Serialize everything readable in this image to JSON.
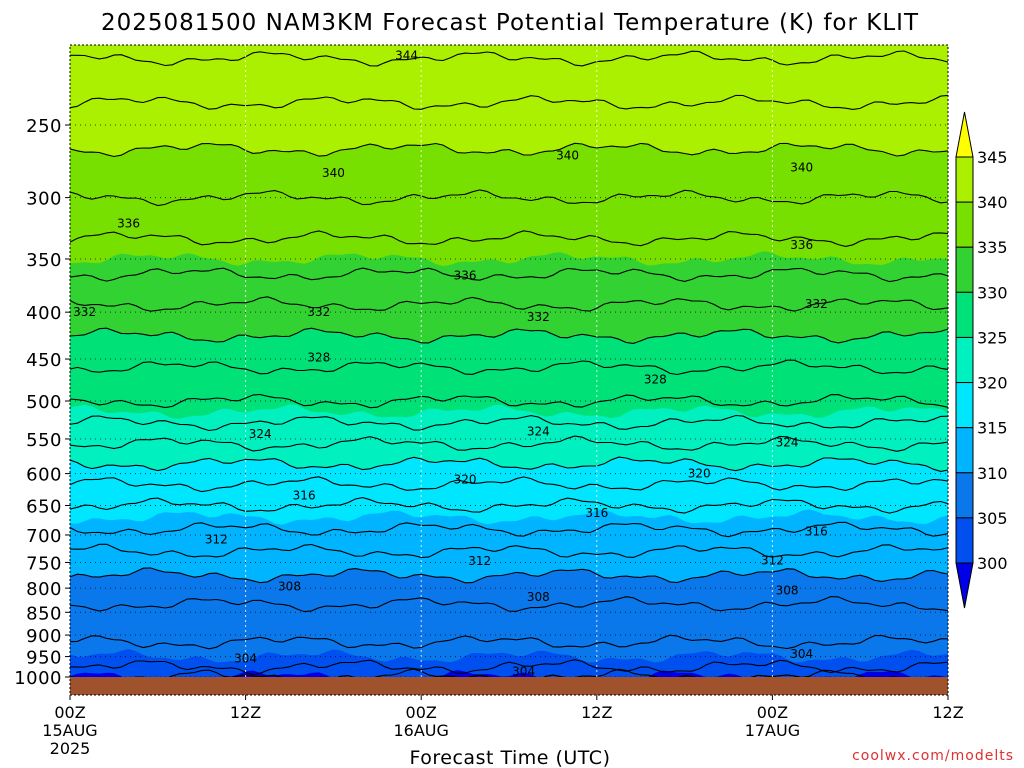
{
  "chart_data": {
    "type": "heatmap",
    "title": "2025081500 NAM3KM Forecast Potential Temperature (K) for KLIT",
    "xlabel": "Forecast Time (UTC)",
    "ylabel": "",
    "credit": "coolwx.com/modelts",
    "x_ticks": [
      {
        "hour": 0,
        "label": "00Z",
        "sub1": "15AUG",
        "sub2": "2025"
      },
      {
        "hour": 12,
        "label": "12Z",
        "sub1": "",
        "sub2": ""
      },
      {
        "hour": 24,
        "label": "00Z",
        "sub1": "16AUG",
        "sub2": ""
      },
      {
        "hour": 36,
        "label": "12Z",
        "sub1": "",
        "sub2": ""
      },
      {
        "hour": 48,
        "label": "00Z",
        "sub1": "17AUG",
        "sub2": ""
      },
      {
        "hour": 60,
        "label": "12Z",
        "sub1": "",
        "sub2": ""
      }
    ],
    "xlim": [
      0,
      60
    ],
    "ylim": [
      1000,
      200
    ],
    "yscale": "log",
    "y_ticks": [
      "250",
      "300",
      "350",
      "400",
      "450",
      "500",
      "550",
      "600",
      "650",
      "700",
      "750",
      "800",
      "850",
      "900",
      "950",
      "1000"
    ],
    "colorbar": {
      "ticks": [
        "345",
        "340",
        "335",
        "330",
        "325",
        "320",
        "315",
        "310",
        "305",
        "300"
      ],
      "bands": [
        {
          "lo": 345,
          "hi": 350,
          "color": "#ffff00"
        },
        {
          "lo": 340,
          "hi": 345,
          "color": "#aaf000"
        },
        {
          "lo": 335,
          "hi": 340,
          "color": "#78e000"
        },
        {
          "lo": 330,
          "hi": 335,
          "color": "#32d232"
        },
        {
          "lo": 325,
          "hi": 330,
          "color": "#00e178"
        },
        {
          "lo": 320,
          "hi": 325,
          "color": "#00f0c0"
        },
        {
          "lo": 315,
          "hi": 320,
          "color": "#00e6ff"
        },
        {
          "lo": 310,
          "hi": 315,
          "color": "#00b4ff"
        },
        {
          "lo": 305,
          "hi": 310,
          "color": "#0a78eb"
        },
        {
          "lo": 300,
          "hi": 305,
          "color": "#0050f0"
        },
        {
          "lo": 295,
          "hi": 300,
          "color": "#0000e6"
        }
      ],
      "over_color": "#ffff00",
      "under_color": "#0000e6"
    },
    "ground_color": "#a0522d",
    "profile": [
      {
        "p": 1000,
        "theta": 303
      },
      {
        "p": 950,
        "theta": 305
      },
      {
        "p": 900,
        "theta": 306.5
      },
      {
        "p": 850,
        "theta": 307.5
      },
      {
        "p": 800,
        "theta": 309
      },
      {
        "p": 750,
        "theta": 311
      },
      {
        "p": 700,
        "theta": 313.5
      },
      {
        "p": 650,
        "theta": 316
      },
      {
        "p": 600,
        "theta": 319
      },
      {
        "p": 550,
        "theta": 322.5
      },
      {
        "p": 500,
        "theta": 326
      },
      {
        "p": 450,
        "theta": 328.5
      },
      {
        "p": 400,
        "theta": 331.5
      },
      {
        "p": 350,
        "theta": 335
      },
      {
        "p": 300,
        "theta": 338
      },
      {
        "p": 250,
        "theta": 341
      },
      {
        "p": 200,
        "theta": 345
      }
    ],
    "contour_labels": [
      {
        "text": "344",
        "hour": 23.0,
        "p": 210
      },
      {
        "text": "340",
        "hour": 18.0,
        "p": 282
      },
      {
        "text": "340",
        "hour": 34.0,
        "p": 270
      },
      {
        "text": "340",
        "hour": 50.0,
        "p": 278
      },
      {
        "text": "336",
        "hour": 4.0,
        "p": 320
      },
      {
        "text": "336",
        "hour": 27.0,
        "p": 365
      },
      {
        "text": "336",
        "hour": 50.0,
        "p": 338
      },
      {
        "text": "332",
        "hour": 1.0,
        "p": 400
      },
      {
        "text": "332",
        "hour": 17.0,
        "p": 400
      },
      {
        "text": "332",
        "hour": 32.0,
        "p": 405
      },
      {
        "text": "332",
        "hour": 51.0,
        "p": 392
      },
      {
        "text": "328",
        "hour": 17.0,
        "p": 448
      },
      {
        "text": "328",
        "hour": 40.0,
        "p": 474
      },
      {
        "text": "324",
        "hour": 13.0,
        "p": 543
      },
      {
        "text": "324",
        "hour": 32.0,
        "p": 540
      },
      {
        "text": "324",
        "hour": 49.0,
        "p": 555
      },
      {
        "text": "320",
        "hour": 27.0,
        "p": 609
      },
      {
        "text": "320",
        "hour": 43.0,
        "p": 600
      },
      {
        "text": "316",
        "hour": 16.0,
        "p": 634
      },
      {
        "text": "316",
        "hour": 36.0,
        "p": 662
      },
      {
        "text": "316",
        "hour": 51.0,
        "p": 694
      },
      {
        "text": "312",
        "hour": 10.0,
        "p": 708
      },
      {
        "text": "312",
        "hour": 28.0,
        "p": 747
      },
      {
        "text": "312",
        "hour": 48.0,
        "p": 746
      },
      {
        "text": "308",
        "hour": 15.0,
        "p": 797
      },
      {
        "text": "308",
        "hour": 32.0,
        "p": 818
      },
      {
        "text": "308",
        "hour": 49.0,
        "p": 805
      },
      {
        "text": "304",
        "hour": 12.0,
        "p": 955
      },
      {
        "text": "304",
        "hour": 31.0,
        "p": 986
      },
      {
        "text": "304",
        "hour": 50.0,
        "p": 944
      }
    ]
  }
}
